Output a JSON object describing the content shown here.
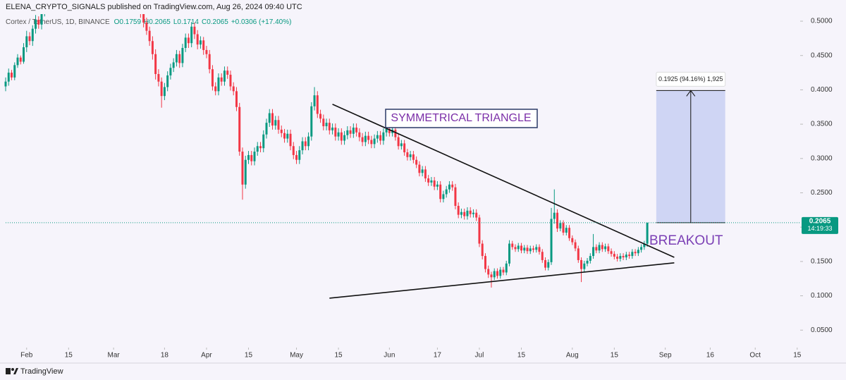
{
  "header": {
    "published": "ELENA_CRYPTO_SIGNALS published on TradingView.com, Aug 26, 2024 09:40 UTC"
  },
  "footer": {
    "brand": "TradingView"
  },
  "chart_data": {
    "type": "candlestick",
    "symbol": "Cortex / TetherUS, 1D, BINANCE",
    "legend_items": [
      "O0.1759",
      "H0.2065",
      "L0.1714",
      "C0.2065",
      "+0.0306 (+17.40%)"
    ],
    "up_color": "#089981",
    "down_color": "#f23645",
    "xlim": [
      "2024-01-25",
      "2024-10-12"
    ],
    "ylim": [
      0.0246,
      0.5103
    ],
    "yticks": [
      {
        "value": 0.05,
        "label": "0.0500"
      },
      {
        "value": 0.1,
        "label": "0.1000"
      },
      {
        "value": 0.15,
        "label": "0.1500"
      },
      {
        "value": 0.2,
        "label": "0.2000"
      },
      {
        "value": 0.25,
        "label": "0.2500"
      },
      {
        "value": 0.3,
        "label": "0.3000"
      },
      {
        "value": 0.35,
        "label": "0.3500"
      },
      {
        "value": 0.4,
        "label": "0.4000"
      },
      {
        "value": 0.45,
        "label": "0.4500"
      },
      {
        "value": 0.5,
        "label": "0.5000"
      }
    ],
    "xticks": [
      {
        "value": "2024-02-01",
        "label": "Feb"
      },
      {
        "value": "2024-02-15",
        "label": "15"
      },
      {
        "value": "2024-03-01",
        "label": "Mar"
      },
      {
        "value": "2024-03-18",
        "label": "18"
      },
      {
        "value": "2024-04-01",
        "label": "Apr"
      },
      {
        "value": "2024-04-15",
        "label": "15"
      },
      {
        "value": "2024-05-01",
        "label": "May"
      },
      {
        "value": "2024-05-15",
        "label": "15"
      },
      {
        "value": "2024-06-01",
        "label": "Jun"
      },
      {
        "value": "2024-06-17",
        "label": "17"
      },
      {
        "value": "2024-07-01",
        "label": "Jul"
      },
      {
        "value": "2024-07-15",
        "label": "15"
      },
      {
        "value": "2024-08-01",
        "label": "Aug"
      },
      {
        "value": "2024-08-15",
        "label": "15"
      },
      {
        "value": "2024-09-01",
        "label": "Sep"
      },
      {
        "value": "2024-09-16",
        "label": "16"
      },
      {
        "value": "2024-10-01",
        "label": "Oct"
      },
      {
        "value": "2024-10-15",
        "label": "15"
      }
    ],
    "x": [
      "2024-01-25",
      "2024-01-26",
      "2024-01-27",
      "2024-01-28",
      "2024-01-29",
      "2024-01-30",
      "2024-01-31",
      "2024-02-01",
      "2024-02-02",
      "2024-02-03",
      "2024-02-04",
      "2024-02-05",
      "2024-02-06",
      "2024-02-07",
      "2024-02-08",
      "2024-02-09",
      "2024-02-10",
      "2024-02-11",
      "2024-02-12",
      "2024-02-13",
      "2024-02-14",
      "2024-02-15",
      "2024-02-16",
      "2024-02-17",
      "2024-02-18",
      "2024-02-19",
      "2024-02-20",
      "2024-02-21",
      "2024-02-22",
      "2024-02-23",
      "2024-02-24",
      "2024-02-25",
      "2024-02-26",
      "2024-02-27",
      "2024-02-28",
      "2024-02-29",
      "2024-03-01",
      "2024-03-02",
      "2024-03-03",
      "2024-03-04",
      "2024-03-05",
      "2024-03-06",
      "2024-03-07",
      "2024-03-08",
      "2024-03-09",
      "2024-03-10",
      "2024-03-11",
      "2024-03-12",
      "2024-03-13",
      "2024-03-14",
      "2024-03-15",
      "2024-03-16",
      "2024-03-17",
      "2024-03-18",
      "2024-03-19",
      "2024-03-20",
      "2024-03-21",
      "2024-03-22",
      "2024-03-23",
      "2024-03-24",
      "2024-03-25",
      "2024-03-26",
      "2024-03-27",
      "2024-03-28",
      "2024-03-29",
      "2024-03-30",
      "2024-03-31",
      "2024-04-01",
      "2024-04-02",
      "2024-04-03",
      "2024-04-04",
      "2024-04-05",
      "2024-04-06",
      "2024-04-07",
      "2024-04-08",
      "2024-04-09",
      "2024-04-10",
      "2024-04-11",
      "2024-04-12",
      "2024-04-13",
      "2024-04-14",
      "2024-04-15",
      "2024-04-16",
      "2024-04-17",
      "2024-04-18",
      "2024-04-19",
      "2024-04-20",
      "2024-04-21",
      "2024-04-22",
      "2024-04-23",
      "2024-04-24",
      "2024-04-25",
      "2024-04-26",
      "2024-04-27",
      "2024-04-28",
      "2024-04-29",
      "2024-04-30",
      "2024-05-01",
      "2024-05-02",
      "2024-05-03",
      "2024-05-04",
      "2024-05-05",
      "2024-05-06",
      "2024-05-07",
      "2024-05-08",
      "2024-05-09",
      "2024-05-10",
      "2024-05-11",
      "2024-05-12",
      "2024-05-13",
      "2024-05-14",
      "2024-05-15",
      "2024-05-16",
      "2024-05-17",
      "2024-05-18",
      "2024-05-19",
      "2024-05-20",
      "2024-05-21",
      "2024-05-22",
      "2024-05-23",
      "2024-05-24",
      "2024-05-25",
      "2024-05-26",
      "2024-05-27",
      "2024-05-28",
      "2024-05-29",
      "2024-05-30",
      "2024-05-31",
      "2024-06-01",
      "2024-06-02",
      "2024-06-03",
      "2024-06-04",
      "2024-06-05",
      "2024-06-06",
      "2024-06-07",
      "2024-06-08",
      "2024-06-09",
      "2024-06-10",
      "2024-06-11",
      "2024-06-12",
      "2024-06-13",
      "2024-06-14",
      "2024-06-15",
      "2024-06-16",
      "2024-06-17",
      "2024-06-18",
      "2024-06-19",
      "2024-06-20",
      "2024-06-21",
      "2024-06-22",
      "2024-06-23",
      "2024-06-24",
      "2024-06-25",
      "2024-06-26",
      "2024-06-27",
      "2024-06-28",
      "2024-06-29",
      "2024-06-30",
      "2024-07-01",
      "2024-07-02",
      "2024-07-03",
      "2024-07-04",
      "2024-07-05",
      "2024-07-06",
      "2024-07-07",
      "2024-07-08",
      "2024-07-09",
      "2024-07-10",
      "2024-07-11",
      "2024-07-12",
      "2024-07-13",
      "2024-07-14",
      "2024-07-15",
      "2024-07-16",
      "2024-07-17",
      "2024-07-18",
      "2024-07-19",
      "2024-07-20",
      "2024-07-21",
      "2024-07-22",
      "2024-07-23",
      "2024-07-24",
      "2024-07-25",
      "2024-07-26",
      "2024-07-27",
      "2024-07-28",
      "2024-07-29",
      "2024-07-30",
      "2024-07-31",
      "2024-08-01",
      "2024-08-02",
      "2024-08-03",
      "2024-08-04",
      "2024-08-05",
      "2024-08-06",
      "2024-08-07",
      "2024-08-08",
      "2024-08-09",
      "2024-08-10",
      "2024-08-11",
      "2024-08-12",
      "2024-08-13",
      "2024-08-14",
      "2024-08-15",
      "2024-08-16",
      "2024-08-17",
      "2024-08-18",
      "2024-08-19",
      "2024-08-20",
      "2024-08-21",
      "2024-08-22",
      "2024-08-23",
      "2024-08-24",
      "2024-08-25",
      "2024-08-26"
    ],
    "open": [
      0.405,
      0.412,
      0.425,
      0.418,
      0.436,
      0.447,
      0.441,
      0.462,
      0.478,
      0.471,
      0.489,
      0.502,
      0.495,
      0.514,
      0.531,
      0.552,
      0.568,
      0.559,
      0.581,
      0.602,
      0.588,
      0.611,
      0.634,
      0.621,
      0.645,
      0.662,
      0.64,
      0.618,
      0.629,
      0.651,
      0.637,
      0.612,
      0.598,
      0.62,
      0.641,
      0.615,
      0.59,
      0.572,
      0.585,
      0.561,
      0.548,
      0.566,
      0.552,
      0.538,
      0.545,
      0.527,
      0.512,
      0.498,
      0.486,
      0.471,
      0.452,
      0.423,
      0.412,
      0.391,
      0.404,
      0.421,
      0.432,
      0.44,
      0.452,
      0.439,
      0.461,
      0.476,
      0.468,
      0.492,
      0.481,
      0.466,
      0.472,
      0.458,
      0.452,
      0.43,
      0.405,
      0.398,
      0.418,
      0.412,
      0.428,
      0.422,
      0.405,
      0.398,
      0.375,
      0.31,
      0.262,
      0.298,
      0.305,
      0.296,
      0.31,
      0.318,
      0.315,
      0.335,
      0.352,
      0.366,
      0.348,
      0.356,
      0.342,
      0.337,
      0.329,
      0.336,
      0.318,
      0.305,
      0.298,
      0.312,
      0.325,
      0.318,
      0.332,
      0.376,
      0.392,
      0.365,
      0.358,
      0.347,
      0.352,
      0.341,
      0.345,
      0.332,
      0.338,
      0.326,
      0.334,
      0.341,
      0.336,
      0.345,
      0.338,
      0.331,
      0.324,
      0.333,
      0.327,
      0.321,
      0.329,
      0.334,
      0.326,
      0.338,
      0.343,
      0.337,
      0.342,
      0.331,
      0.318,
      0.322,
      0.309,
      0.302,
      0.306,
      0.298,
      0.291,
      0.279,
      0.284,
      0.271,
      0.265,
      0.268,
      0.259,
      0.262,
      0.241,
      0.248,
      0.255,
      0.262,
      0.258,
      0.231,
      0.218,
      0.222,
      0.216,
      0.224,
      0.219,
      0.221,
      0.214,
      0.176,
      0.158,
      0.139,
      0.131,
      0.127,
      0.136,
      0.129,
      0.138,
      0.134,
      0.147,
      0.176,
      0.171,
      0.168,
      0.173,
      0.166,
      0.17,
      0.165,
      0.169,
      0.167,
      0.171,
      0.164,
      0.152,
      0.141,
      0.149,
      0.212,
      0.221,
      0.198,
      0.206,
      0.192,
      0.199,
      0.184,
      0.178,
      0.169,
      0.152,
      0.139,
      0.147,
      0.151,
      0.158,
      0.171,
      0.166,
      0.174,
      0.168,
      0.172,
      0.165,
      0.161,
      0.157,
      0.154,
      0.158,
      0.156,
      0.16,
      0.158,
      0.164,
      0.162,
      0.167,
      0.171,
      0.1759
    ],
    "high": [
      0.418,
      0.431,
      0.429,
      0.44,
      0.452,
      0.45,
      0.468,
      0.486,
      0.484,
      0.494,
      0.509,
      0.507,
      0.521,
      0.538,
      0.56,
      0.575,
      0.571,
      0.588,
      0.61,
      0.607,
      0.619,
      0.641,
      0.638,
      0.652,
      0.67,
      0.668,
      0.646,
      0.636,
      0.658,
      0.655,
      0.643,
      0.618,
      0.627,
      0.648,
      0.647,
      0.621,
      0.596,
      0.591,
      0.59,
      0.566,
      0.573,
      0.571,
      0.558,
      0.552,
      0.55,
      0.532,
      0.519,
      0.505,
      0.492,
      0.478,
      0.459,
      0.43,
      0.418,
      0.41,
      0.427,
      0.438,
      0.446,
      0.458,
      0.457,
      0.467,
      0.482,
      0.482,
      0.499,
      0.498,
      0.487,
      0.478,
      0.477,
      0.464,
      0.458,
      0.436,
      0.411,
      0.424,
      0.424,
      0.434,
      0.434,
      0.428,
      0.411,
      0.404,
      0.381,
      0.316,
      0.304,
      0.311,
      0.311,
      0.316,
      0.324,
      0.324,
      0.341,
      0.358,
      0.372,
      0.372,
      0.362,
      0.362,
      0.348,
      0.343,
      0.342,
      0.342,
      0.324,
      0.311,
      0.318,
      0.331,
      0.331,
      0.338,
      0.382,
      0.404,
      0.398,
      0.371,
      0.364,
      0.358,
      0.358,
      0.351,
      0.351,
      0.344,
      0.344,
      0.34,
      0.347,
      0.347,
      0.351,
      0.351,
      0.344,
      0.337,
      0.339,
      0.339,
      0.333,
      0.335,
      0.34,
      0.34,
      0.344,
      0.349,
      0.348,
      0.347,
      0.347,
      0.336,
      0.327,
      0.327,
      0.314,
      0.311,
      0.311,
      0.303,
      0.296,
      0.289,
      0.289,
      0.276,
      0.273,
      0.273,
      0.267,
      0.267,
      0.253,
      0.26,
      0.267,
      0.267,
      0.263,
      0.236,
      0.227,
      0.227,
      0.229,
      0.229,
      0.226,
      0.226,
      0.218,
      0.181,
      0.162,
      0.144,
      0.135,
      0.14,
      0.14,
      0.142,
      0.142,
      0.151,
      0.181,
      0.18,
      0.175,
      0.177,
      0.177,
      0.174,
      0.174,
      0.173,
      0.173,
      0.175,
      0.175,
      0.168,
      0.156,
      0.153,
      0.228,
      0.255,
      0.226,
      0.21,
      0.21,
      0.203,
      0.203,
      0.188,
      0.182,
      0.173,
      0.156,
      0.151,
      0.155,
      0.162,
      0.19,
      0.175,
      0.178,
      0.178,
      0.176,
      0.176,
      0.169,
      0.165,
      0.161,
      0.162,
      0.162,
      0.164,
      0.164,
      0.168,
      0.168,
      0.171,
      0.175,
      0.18,
      0.2065
    ],
    "low": [
      0.398,
      0.406,
      0.414,
      0.414,
      0.432,
      0.437,
      0.438,
      0.455,
      0.465,
      0.464,
      0.482,
      0.489,
      0.488,
      0.507,
      0.524,
      0.545,
      0.552,
      0.552,
      0.574,
      0.581,
      0.581,
      0.604,
      0.614,
      0.614,
      0.638,
      0.633,
      0.611,
      0.611,
      0.622,
      0.63,
      0.605,
      0.591,
      0.591,
      0.613,
      0.608,
      0.583,
      0.565,
      0.567,
      0.555,
      0.541,
      0.542,
      0.546,
      0.531,
      0.532,
      0.52,
      0.505,
      0.491,
      0.48,
      0.464,
      0.444,
      0.415,
      0.405,
      0.374,
      0.385,
      0.398,
      0.415,
      0.426,
      0.434,
      0.432,
      0.433,
      0.455,
      0.461,
      0.462,
      0.474,
      0.459,
      0.46,
      0.451,
      0.446,
      0.424,
      0.399,
      0.392,
      0.392,
      0.406,
      0.406,
      0.416,
      0.399,
      0.392,
      0.369,
      0.304,
      0.24,
      0.256,
      0.292,
      0.29,
      0.29,
      0.304,
      0.309,
      0.309,
      0.329,
      0.346,
      0.342,
      0.342,
      0.336,
      0.331,
      0.323,
      0.323,
      0.312,
      0.299,
      0.292,
      0.292,
      0.306,
      0.312,
      0.312,
      0.326,
      0.37,
      0.359,
      0.352,
      0.341,
      0.341,
      0.335,
      0.335,
      0.326,
      0.326,
      0.32,
      0.32,
      0.328,
      0.33,
      0.33,
      0.332,
      0.325,
      0.318,
      0.318,
      0.321,
      0.315,
      0.315,
      0.323,
      0.32,
      0.32,
      0.332,
      0.332,
      0.332,
      0.326,
      0.313,
      0.313,
      0.304,
      0.297,
      0.297,
      0.293,
      0.286,
      0.274,
      0.274,
      0.266,
      0.26,
      0.26,
      0.254,
      0.254,
      0.236,
      0.236,
      0.243,
      0.25,
      0.253,
      0.226,
      0.213,
      0.213,
      0.211,
      0.211,
      0.214,
      0.214,
      0.209,
      0.171,
      0.153,
      0.134,
      0.126,
      0.112,
      0.123,
      0.125,
      0.125,
      0.13,
      0.13,
      0.143,
      0.167,
      0.164,
      0.164,
      0.162,
      0.162,
      0.161,
      0.161,
      0.163,
      0.163,
      0.16,
      0.148,
      0.137,
      0.137,
      0.145,
      0.205,
      0.193,
      0.194,
      0.188,
      0.188,
      0.18,
      0.174,
      0.165,
      0.148,
      0.12,
      0.135,
      0.143,
      0.147,
      0.154,
      0.162,
      0.162,
      0.164,
      0.164,
      0.161,
      0.157,
      0.153,
      0.15,
      0.15,
      0.152,
      0.152,
      0.154,
      0.154,
      0.158,
      0.158,
      0.163,
      0.167,
      0.1714
    ],
    "close": [
      0.412,
      0.425,
      0.418,
      0.436,
      0.447,
      0.441,
      0.462,
      0.478,
      0.471,
      0.489,
      0.502,
      0.495,
      0.514,
      0.531,
      0.552,
      0.568,
      0.559,
      0.581,
      0.602,
      0.588,
      0.611,
      0.634,
      0.621,
      0.645,
      0.662,
      0.64,
      0.618,
      0.629,
      0.651,
      0.637,
      0.612,
      0.598,
      0.62,
      0.641,
      0.615,
      0.59,
      0.572,
      0.585,
      0.561,
      0.548,
      0.566,
      0.552,
      0.538,
      0.545,
      0.527,
      0.512,
      0.498,
      0.486,
      0.471,
      0.452,
      0.423,
      0.412,
      0.391,
      0.404,
      0.421,
      0.432,
      0.44,
      0.452,
      0.439,
      0.461,
      0.476,
      0.468,
      0.492,
      0.481,
      0.466,
      0.472,
      0.458,
      0.452,
      0.43,
      0.405,
      0.398,
      0.418,
      0.412,
      0.428,
      0.422,
      0.405,
      0.398,
      0.375,
      0.31,
      0.262,
      0.298,
      0.305,
      0.296,
      0.31,
      0.318,
      0.315,
      0.335,
      0.352,
      0.366,
      0.348,
      0.356,
      0.342,
      0.337,
      0.329,
      0.336,
      0.318,
      0.305,
      0.298,
      0.312,
      0.325,
      0.318,
      0.332,
      0.376,
      0.392,
      0.365,
      0.358,
      0.347,
      0.352,
      0.341,
      0.345,
      0.332,
      0.338,
      0.326,
      0.334,
      0.341,
      0.336,
      0.345,
      0.338,
      0.331,
      0.324,
      0.333,
      0.327,
      0.321,
      0.329,
      0.334,
      0.326,
      0.338,
      0.343,
      0.337,
      0.342,
      0.331,
      0.318,
      0.322,
      0.309,
      0.302,
      0.306,
      0.298,
      0.291,
      0.279,
      0.284,
      0.271,
      0.265,
      0.268,
      0.259,
      0.262,
      0.241,
      0.248,
      0.255,
      0.262,
      0.258,
      0.231,
      0.218,
      0.222,
      0.216,
      0.224,
      0.219,
      0.221,
      0.214,
      0.176,
      0.158,
      0.139,
      0.131,
      0.127,
      0.136,
      0.129,
      0.138,
      0.134,
      0.147,
      0.176,
      0.171,
      0.168,
      0.173,
      0.166,
      0.17,
      0.165,
      0.169,
      0.167,
      0.171,
      0.164,
      0.152,
      0.141,
      0.149,
      0.212,
      0.221,
      0.198,
      0.206,
      0.192,
      0.199,
      0.184,
      0.178,
      0.169,
      0.152,
      0.139,
      0.147,
      0.151,
      0.158,
      0.171,
      0.166,
      0.174,
      0.168,
      0.172,
      0.165,
      0.161,
      0.157,
      0.154,
      0.158,
      0.156,
      0.16,
      0.158,
      0.164,
      0.162,
      0.167,
      0.171,
      0.1759,
      0.2065
    ],
    "last_price": 0.2065,
    "countdown": "14:19:33",
    "trendlines": [
      {
        "x": [
          "2024-05-13",
          "2024-09-04"
        ],
        "y": [
          0.379,
          0.156
        ]
      },
      {
        "x": [
          "2024-05-12",
          "2024-09-04"
        ],
        "y": [
          0.0965,
          0.148
        ]
      }
    ],
    "measure": {
      "x": [
        "2024-08-29",
        "2024-09-21"
      ],
      "y": [
        0.2065,
        0.399
      ],
      "label": "0.1925 (94.16%) 1,925"
    },
    "annotations": [
      {
        "text": "SYMMETRICAL TRIANGLE"
      },
      {
        "text": "BREAKOUT"
      }
    ]
  }
}
